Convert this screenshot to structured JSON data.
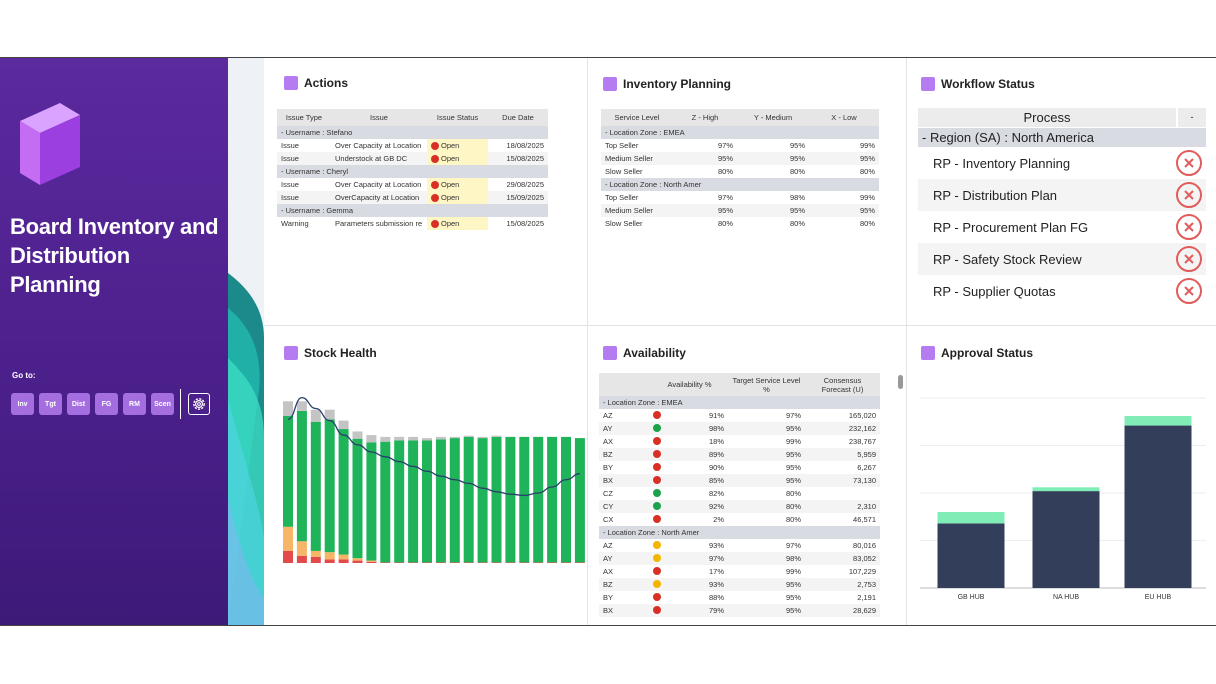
{
  "sidebar": {
    "title": "Board Inventory and Distribution Planning",
    "goto_label": "Go to:",
    "buttons": [
      "Inv",
      "Tgt",
      "Dist",
      "FG",
      "RM",
      "Scen"
    ]
  },
  "colors": {
    "accent": "#b57cf2",
    "sidebar": "#4a1f8a",
    "open": "#d93025",
    "green": "#1aa34a",
    "amber": "#f2b500",
    "bar_dark": "#333f5a",
    "bar_light": "#80ecb6"
  },
  "actions": {
    "title": "Actions",
    "headers": [
      "Issue Type",
      "Issue",
      "Issue Status",
      "Due Date"
    ],
    "groups": [
      {
        "label": "-  Username : Stefano",
        "rows": [
          {
            "type": "Issue",
            "issue": "Over Capacity at Location",
            "status": "Open",
            "due": "18/08/2025"
          },
          {
            "type": "Issue",
            "issue": "Understock at GB DC",
            "status": "Open",
            "due": "15/08/2025"
          }
        ]
      },
      {
        "label": "-  Username : Cheryl",
        "rows": [
          {
            "type": "Issue",
            "issue": "Over Capacity at Location",
            "status": "Open",
            "due": "29/08/2025"
          },
          {
            "type": "Issue",
            "issue": "OverCapacity at Location",
            "status": "Open",
            "due": "15/09/2025"
          }
        ]
      },
      {
        "label": "-  Username : Gemma",
        "rows": [
          {
            "type": "Warning",
            "issue": "Parameters submission re",
            "status": "Open",
            "due": "15/08/2025"
          }
        ]
      }
    ]
  },
  "inventory": {
    "title": "Inventory Planning",
    "headers": [
      "Service Level",
      "Z - High",
      "Y - Medium",
      "X - Low"
    ],
    "groups": [
      {
        "label": "-  Location Zone : EMEA",
        "rows": [
          [
            "Top Seller",
            "97%",
            "95%",
            "99%"
          ],
          [
            "Medium Seller",
            "95%",
            "95%",
            "95%"
          ],
          [
            "Slow Seller",
            "80%",
            "80%",
            "80%"
          ]
        ]
      },
      {
        "label": "-  Location Zone : North Amer",
        "rows": [
          [
            "Top Seller",
            "97%",
            "98%",
            "99%"
          ],
          [
            "Medium Seller",
            "95%",
            "95%",
            "95%"
          ],
          [
            "Slow Seller",
            "80%",
            "80%",
            "80%"
          ]
        ]
      }
    ]
  },
  "workflow": {
    "title": "Workflow Status",
    "header": "Process",
    "header_col2": "-",
    "region": "-  Region (SA) : North America",
    "items": [
      "RP - Inventory Planning",
      "RP - Distribution Plan",
      "RP - Procurement Plan FG",
      "RP - Safety Stock Review",
      "RP - Supplier Quotas"
    ]
  },
  "stock": {
    "title": "Stock Health",
    "chart_data": {
      "type": "bar",
      "stacked": true,
      "series": [
        {
          "name": "red",
          "values": [
            10,
            6,
            5,
            3,
            3,
            2,
            1,
            0.5,
            0.5,
            0.5,
            0.5,
            0.5,
            0.5,
            0.5,
            0.5,
            0.5,
            0.5,
            0.5,
            0.5,
            0.5,
            0.5,
            0.5
          ]
        },
        {
          "name": "amber",
          "values": [
            20,
            12,
            5,
            6,
            4,
            2,
            1,
            0,
            0,
            0,
            0,
            0,
            0,
            0,
            0,
            0,
            0,
            0,
            0,
            0,
            0,
            0
          ]
        },
        {
          "name": "green",
          "values": [
            92,
            108,
            107,
            110,
            104,
            99,
            98,
            100,
            101,
            101,
            101,
            102,
            103,
            104,
            103,
            104,
            104,
            104,
            104,
            104,
            104,
            103
          ]
        },
        {
          "name": "grey",
          "values": [
            12,
            8,
            10,
            8,
            7,
            6,
            6,
            4,
            3,
            3,
            2,
            2,
            1,
            1,
            1,
            1,
            0,
            0,
            0,
            0,
            0,
            0
          ]
        }
      ],
      "line": [
        119,
        137,
        128,
        118,
        106,
        98,
        92,
        88,
        84,
        80,
        76,
        72,
        69,
        66,
        62,
        59,
        57,
        56,
        58,
        63,
        69,
        74
      ],
      "ylim": [
        0,
        145
      ]
    }
  },
  "availability": {
    "title": "Availability",
    "headers": [
      "",
      "Availability %",
      "Target Service Level %",
      "Consensus Forecast (U)"
    ],
    "groups": [
      {
        "label": "-  Location Zone : EMEA",
        "rows": [
          {
            "code": "AZ",
            "dot": "red",
            "avail": "91%",
            "target": "97%",
            "fc": "165,020"
          },
          {
            "code": "AY",
            "dot": "green",
            "avail": "98%",
            "target": "95%",
            "fc": "232,162"
          },
          {
            "code": "AX",
            "dot": "red",
            "avail": "18%",
            "target": "99%",
            "fc": "238,767"
          },
          {
            "code": "BZ",
            "dot": "red",
            "avail": "89%",
            "target": "95%",
            "fc": "5,959"
          },
          {
            "code": "BY",
            "dot": "red",
            "avail": "90%",
            "target": "95%",
            "fc": "6,267"
          },
          {
            "code": "BX",
            "dot": "red",
            "avail": "85%",
            "target": "95%",
            "fc": "73,130"
          },
          {
            "code": "CZ",
            "dot": "green",
            "avail": "82%",
            "target": "80%",
            "fc": ""
          },
          {
            "code": "CY",
            "dot": "green",
            "avail": "92%",
            "target": "80%",
            "fc": "2,310"
          },
          {
            "code": "CX",
            "dot": "red",
            "avail": "2%",
            "target": "80%",
            "fc": "46,571"
          }
        ]
      },
      {
        "label": "-  Location Zone : North Amer",
        "rows": [
          {
            "code": "AZ",
            "dot": "amber",
            "avail": "93%",
            "target": "97%",
            "fc": "80,016"
          },
          {
            "code": "AY",
            "dot": "amber",
            "avail": "97%",
            "target": "98%",
            "fc": "83,052"
          },
          {
            "code": "AX",
            "dot": "red",
            "avail": "17%",
            "target": "99%",
            "fc": "107,229"
          },
          {
            "code": "BZ",
            "dot": "amber",
            "avail": "93%",
            "target": "95%",
            "fc": "2,753"
          },
          {
            "code": "BY",
            "dot": "red",
            "avail": "88%",
            "target": "95%",
            "fc": "2,191"
          },
          {
            "code": "BX",
            "dot": "red",
            "avail": "79%",
            "target": "95%",
            "fc": "28,629"
          }
        ]
      }
    ]
  },
  "approval": {
    "title": "Approval Status",
    "chart_data": {
      "type": "bar",
      "stacked": true,
      "categories": [
        "GB HUB",
        "NA HUB",
        "EU HUB"
      ],
      "series": [
        {
          "name": "dark",
          "values": [
            68,
            102,
            171
          ]
        },
        {
          "name": "light",
          "values": [
            12,
            4,
            10
          ]
        }
      ],
      "ylim": [
        0,
        200
      ]
    }
  }
}
